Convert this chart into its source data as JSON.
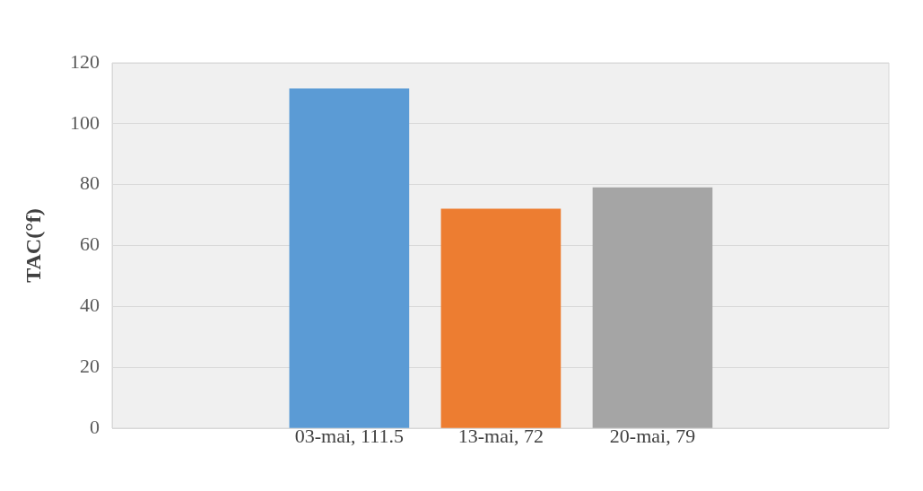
{
  "chart_data": {
    "type": "bar",
    "ylabel": "TAC(°f)",
    "categories": [
      null,
      null,
      null
    ],
    "values": [
      111.5,
      72,
      79
    ],
    "colors": [
      "#5b9bd5",
      "#ed7d31",
      "#a5a5a5"
    ],
    "value_labels": [
      "03-mai, 111.5",
      "13-mai, 72",
      "20-mai, 79"
    ],
    "ylim": [
      0,
      120
    ],
    "yticks": [
      0,
      20,
      40,
      60,
      80,
      100,
      120
    ],
    "grid": "y",
    "legend": false
  }
}
